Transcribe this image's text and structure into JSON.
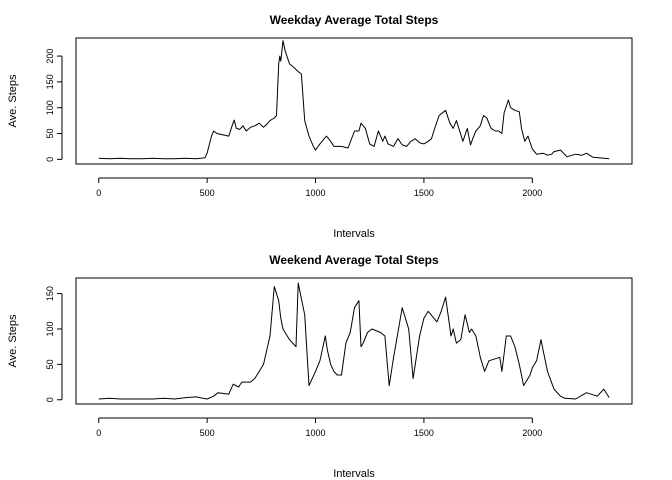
{
  "chart_data": [
    {
      "type": "line",
      "title": "Weekday Average Total Steps",
      "xlabel": "Intervals",
      "ylabel": "Ave. Steps",
      "xlim": [
        -105,
        2460
      ],
      "ylim": [
        -9,
        235
      ],
      "xticks": [
        0,
        500,
        1000,
        1500,
        2000
      ],
      "yticks": [
        0,
        50,
        100,
        150,
        200
      ],
      "grid": false,
      "x": [
        0,
        50,
        100,
        150,
        200,
        250,
        300,
        350,
        400,
        450,
        490,
        500,
        520,
        530,
        545,
        600,
        615,
        625,
        635,
        650,
        665,
        680,
        700,
        720,
        740,
        760,
        775,
        790,
        810,
        820,
        830,
        835,
        840,
        850,
        860,
        880,
        900,
        920,
        935,
        950,
        970,
        990,
        1000,
        1020,
        1050,
        1070,
        1085,
        1100,
        1120,
        1150,
        1180,
        1200,
        1210,
        1230,
        1240,
        1250,
        1270,
        1290,
        1310,
        1320,
        1335,
        1360,
        1380,
        1400,
        1420,
        1440,
        1460,
        1480,
        1500,
        1520,
        1535,
        1550,
        1570,
        1600,
        1620,
        1635,
        1650,
        1680,
        1700,
        1715,
        1725,
        1740,
        1760,
        1775,
        1790,
        1810,
        1830,
        1845,
        1860,
        1870,
        1890,
        1900,
        1920,
        1940,
        1950,
        1965,
        1980,
        2000,
        2020,
        2050,
        2070,
        2090,
        2100,
        2130,
        2160,
        2200,
        2230,
        2250,
        2280,
        2330,
        2355
      ],
      "values": [
        2,
        1,
        2,
        1,
        1,
        2,
        1,
        1,
        2,
        1,
        3,
        12,
        45,
        55,
        50,
        45,
        65,
        76,
        60,
        58,
        65,
        55,
        62,
        65,
        70,
        62,
        68,
        75,
        80,
        85,
        185,
        200,
        190,
        230,
        210,
        185,
        178,
        170,
        165,
        75,
        45,
        25,
        18,
        30,
        45,
        35,
        25,
        25,
        25,
        22,
        55,
        55,
        70,
        60,
        45,
        30,
        25,
        55,
        35,
        45,
        30,
        25,
        40,
        28,
        25,
        35,
        40,
        32,
        30,
        35,
        40,
        60,
        85,
        95,
        70,
        60,
        75,
        35,
        60,
        28,
        40,
        55,
        65,
        85,
        80,
        60,
        55,
        55,
        50,
        90,
        115,
        100,
        95,
        92,
        60,
        35,
        45,
        20,
        10,
        12,
        8,
        10,
        15,
        18,
        5,
        10,
        8,
        12,
        4,
        2,
        1
      ],
      "series": [
        {
          "values_ref": "values"
        }
      ]
    },
    {
      "type": "line",
      "title": "Weekend Average Total Steps",
      "xlabel": "Intervals",
      "ylabel": "Ave. Steps",
      "xlim": [
        -105,
        2460
      ],
      "ylim": [
        -6,
        172
      ],
      "xticks": [
        0,
        500,
        1000,
        1500,
        2000
      ],
      "yticks": [
        0,
        50,
        100,
        150
      ],
      "grid": false,
      "x": [
        0,
        50,
        100,
        150,
        200,
        250,
        300,
        350,
        400,
        450,
        480,
        500,
        530,
        550,
        600,
        620,
        645,
        660,
        700,
        720,
        740,
        760,
        790,
        810,
        830,
        840,
        850,
        880,
        910,
        920,
        950,
        970,
        1000,
        1020,
        1045,
        1055,
        1070,
        1085,
        1100,
        1120,
        1140,
        1160,
        1180,
        1200,
        1210,
        1220,
        1240,
        1260,
        1300,
        1320,
        1340,
        1360,
        1400,
        1430,
        1450,
        1480,
        1500,
        1520,
        1560,
        1580,
        1600,
        1625,
        1635,
        1650,
        1670,
        1690,
        1710,
        1720,
        1740,
        1760,
        1780,
        1800,
        1850,
        1860,
        1880,
        1900,
        1920,
        1940,
        1960,
        1990,
        2000,
        2020,
        2040,
        2050,
        2070,
        2100,
        2130,
        2150,
        2200,
        2250,
        2300,
        2330,
        2355
      ],
      "values": [
        1,
        2,
        1,
        1,
        1,
        1,
        2,
        1,
        3,
        4,
        2,
        1,
        5,
        10,
        8,
        22,
        18,
        25,
        25,
        30,
        40,
        50,
        90,
        160,
        140,
        115,
        100,
        85,
        75,
        165,
        120,
        20,
        40,
        55,
        90,
        70,
        50,
        40,
        35,
        35,
        80,
        95,
        130,
        140,
        75,
        80,
        95,
        100,
        95,
        90,
        20,
        60,
        130,
        100,
        30,
        90,
        115,
        125,
        110,
        125,
        145,
        90,
        100,
        80,
        85,
        120,
        95,
        100,
        90,
        60,
        40,
        55,
        60,
        40,
        90,
        90,
        75,
        50,
        20,
        35,
        45,
        55,
        85,
        70,
        40,
        15,
        5,
        2,
        1,
        10,
        5,
        15,
        3
      ],
      "series": [
        {
          "values_ref": "values"
        }
      ]
    }
  ]
}
